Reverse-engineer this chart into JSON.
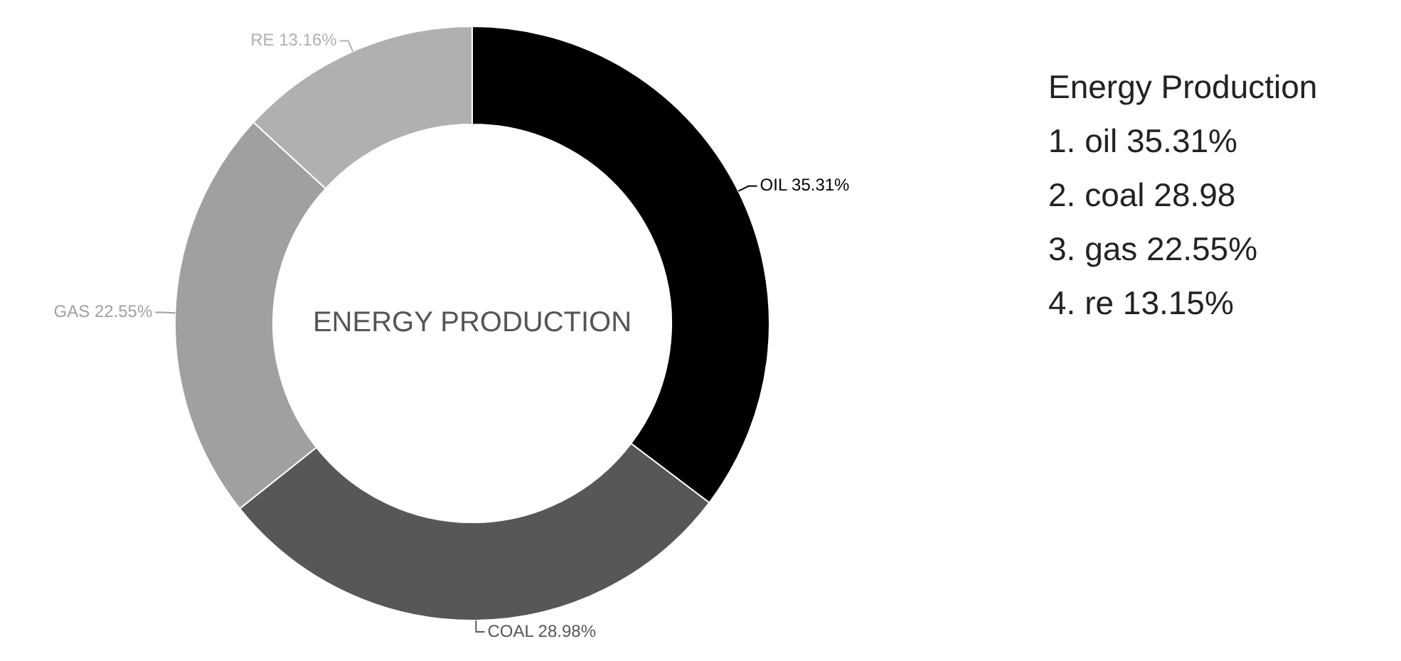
{
  "chart_data": {
    "type": "donut",
    "title": "ENERGY PRODUCTION",
    "categories": [
      "OIL",
      "COAL",
      "GAS",
      "RE"
    ],
    "values": [
      35.31,
      28.98,
      22.55,
      13.16
    ],
    "value_labels": [
      "35.31%",
      "28.98%",
      "22.55%",
      "13.16%"
    ],
    "colors": [
      "#000000",
      "#575757",
      "#a0a0a0",
      "#b0b0b0"
    ],
    "legend": false,
    "annotations": [
      "Energy Production",
      "1. oil 35.31%",
      "2. coal 28.98",
      "3. gas 22.55%",
      "4. re 13.15%"
    ]
  }
}
